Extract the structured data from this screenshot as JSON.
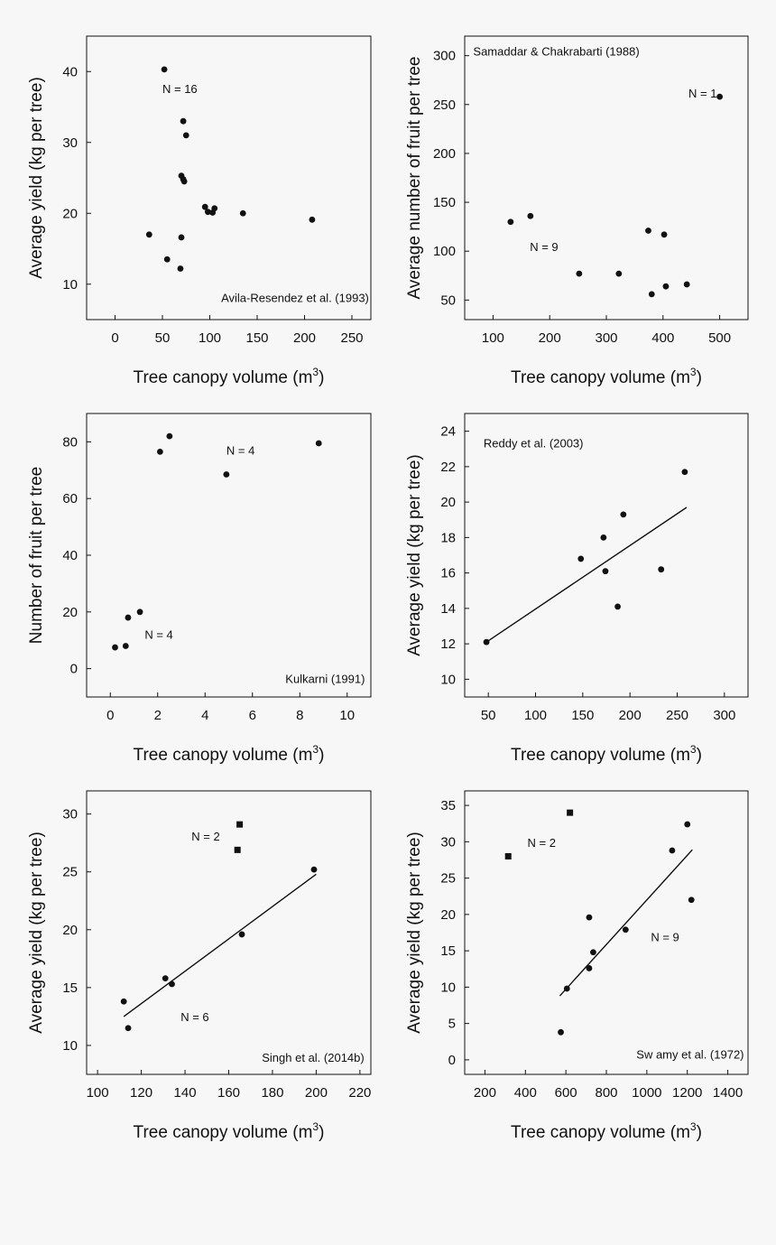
{
  "chart_data": [
    {
      "type": "scatter",
      "xlabel": "Tree canopy volume (m",
      "xlabel_sup": "3",
      "xlabel_end": ")",
      "ylabel": "Average yield (kg per tree)",
      "xlim": [
        -30,
        270
      ],
      "ylim": [
        5,
        45
      ],
      "xticks": [
        0,
        50,
        100,
        150,
        200,
        250
      ],
      "yticks": [
        10,
        20,
        30,
        40
      ],
      "annotations": [
        {
          "text": "N = 16",
          "x": 50,
          "y": 37
        },
        {
          "text": "Avila-Resendez et al. (1993)",
          "x": 268,
          "y": 7.5,
          "anchor": "end"
        }
      ],
      "series": [
        {
          "marker": "circle",
          "x": [
            52,
            72,
            75,
            70,
            72,
            73,
            95,
            98,
            105,
            103,
            135,
            208,
            36,
            70,
            55,
            69
          ],
          "y": [
            40.3,
            33,
            31,
            25.3,
            24.8,
            24.5,
            20.9,
            20.2,
            20.7,
            20.1,
            20,
            19.1,
            17,
            16.6,
            13.5,
            12.2
          ]
        }
      ]
    },
    {
      "type": "scatter",
      "xlabel": "Tree canopy volume (m",
      "xlabel_sup": "3",
      "xlabel_end": ")",
      "ylabel": "Average number of fruit per tree",
      "xlim": [
        50,
        550
      ],
      "ylim": [
        30,
        320
      ],
      "xticks": [
        100,
        200,
        300,
        400,
        500
      ],
      "yticks": [
        50,
        100,
        150,
        200,
        250,
        300
      ],
      "annotations": [
        {
          "text": "Samaddar & Chakrabarti (1988)",
          "x": 65,
          "y": 300
        },
        {
          "text": "N = 1",
          "x": 445,
          "y": 257
        },
        {
          "text": "N = 9",
          "x": 165,
          "y": 100
        }
      ],
      "series": [
        {
          "marker": "circle",
          "x": [
            500,
            131,
            166,
            252,
            322,
            374,
            402,
            405,
            442,
            380
          ],
          "y": [
            258,
            130,
            136,
            77,
            77,
            121,
            117,
            64,
            66,
            56
          ]
        }
      ]
    },
    {
      "type": "scatter",
      "xlabel": "Tree canopy volume (m",
      "xlabel_sup": "3",
      "xlabel_end": ")",
      "ylabel": "Number of fruit per tree",
      "xlim": [
        -1,
        11
      ],
      "ylim": [
        -10,
        90
      ],
      "xticks": [
        0,
        2,
        4,
        6,
        8,
        10
      ],
      "yticks": [
        0,
        20,
        40,
        60,
        80
      ],
      "annotations": [
        {
          "text": "N = 4",
          "x": 4.9,
          "y": 75.5
        },
        {
          "text": "N = 4",
          "x": 1.45,
          "y": 10.5
        },
        {
          "text": "Kulkarni (1991)",
          "x": 10.75,
          "y": -5,
          "anchor": "end"
        }
      ],
      "series": [
        {
          "marker": "circle",
          "x": [
            2.5,
            2.1,
            4.9,
            8.8,
            0.75,
            1.25,
            0.2,
            0.65
          ],
          "y": [
            82,
            76.5,
            68.5,
            79.5,
            18,
            20,
            7.5,
            8
          ]
        }
      ]
    },
    {
      "type": "scatter",
      "xlabel": "Tree canopy volume (m",
      "xlabel_sup": "3",
      "xlabel_end": ")",
      "ylabel": "Average yield (kg per tree)",
      "xlim": [
        25,
        325
      ],
      "ylim": [
        9,
        25
      ],
      "xticks": [
        50,
        100,
        150,
        200,
        250,
        300
      ],
      "yticks": [
        10,
        12,
        14,
        16,
        18,
        20,
        22,
        24
      ],
      "annotations": [
        {
          "text": "Reddy et al. (2003)",
          "x": 45,
          "y": 23.1
        }
      ],
      "fit": {
        "x": [
          48,
          260
        ],
        "y": [
          12.1,
          19.7
        ]
      },
      "series": [
        {
          "marker": "circle",
          "x": [
            48,
            148,
            172,
            174,
            187,
            193,
            233,
            258
          ],
          "y": [
            12.1,
            16.8,
            18,
            16.1,
            14.1,
            19.3,
            16.2,
            21.7
          ]
        }
      ]
    },
    {
      "type": "scatter",
      "xlabel": "Tree canopy volume (m",
      "xlabel_sup": "3",
      "xlabel_end": ")",
      "ylabel": "Average yield (kg per tree)",
      "xlim": [
        95,
        225
      ],
      "ylim": [
        7.5,
        32
      ],
      "xticks": [
        100,
        120,
        140,
        160,
        180,
        200,
        220
      ],
      "yticks": [
        10,
        15,
        20,
        25,
        30
      ],
      "annotations": [
        {
          "text": "N = 2",
          "x": 143,
          "y": 27.7
        },
        {
          "text": "N = 6",
          "x": 138,
          "y": 12.1
        },
        {
          "text": "Singh et al. (2014b)",
          "x": 222,
          "y": 8.6,
          "anchor": "end"
        }
      ],
      "fit": {
        "x": [
          112,
          200
        ],
        "y": [
          12.5,
          24.8
        ]
      },
      "series": [
        {
          "marker": "square",
          "x": [
            165,
            164
          ],
          "y": [
            29.1,
            26.9
          ]
        },
        {
          "marker": "circle",
          "x": [
            112,
            114,
            131,
            134,
            166,
            199
          ],
          "y": [
            13.8,
            11.5,
            15.8,
            15.3,
            19.6,
            25.2
          ]
        }
      ]
    },
    {
      "type": "scatter",
      "xlabel": "Tree canopy volume (m",
      "xlabel_sup": "3",
      "xlabel_end": ")",
      "ylabel": "Average yield (kg per tree)",
      "xlim": [
        100,
        1500
      ],
      "ylim": [
        -2,
        37
      ],
      "xticks": [
        200,
        400,
        600,
        800,
        1000,
        1200,
        1400
      ],
      "yticks": [
        0,
        5,
        10,
        15,
        20,
        25,
        30,
        35
      ],
      "annotations": [
        {
          "text": "N = 2",
          "x": 410,
          "y": 29.3
        },
        {
          "text": "N = 9",
          "x": 1020,
          "y": 16.3
        },
        {
          "text": "Sw amy et al. (1972)",
          "x": 1480,
          "y": 0.2,
          "anchor": "end"
        }
      ],
      "fit": {
        "x": [
          570,
          1225
        ],
        "y": [
          8.8,
          28.9
        ]
      },
      "series": [
        {
          "marker": "square",
          "x": [
            315,
            620
          ],
          "y": [
            28,
            34
          ]
        },
        {
          "marker": "circle",
          "x": [
            575,
            605,
            715,
            715,
            735,
            895,
            1125,
            1200,
            1220
          ],
          "y": [
            3.8,
            9.8,
            19.6,
            12.6,
            14.8,
            17.9,
            28.8,
            32.4,
            22
          ]
        }
      ]
    }
  ]
}
